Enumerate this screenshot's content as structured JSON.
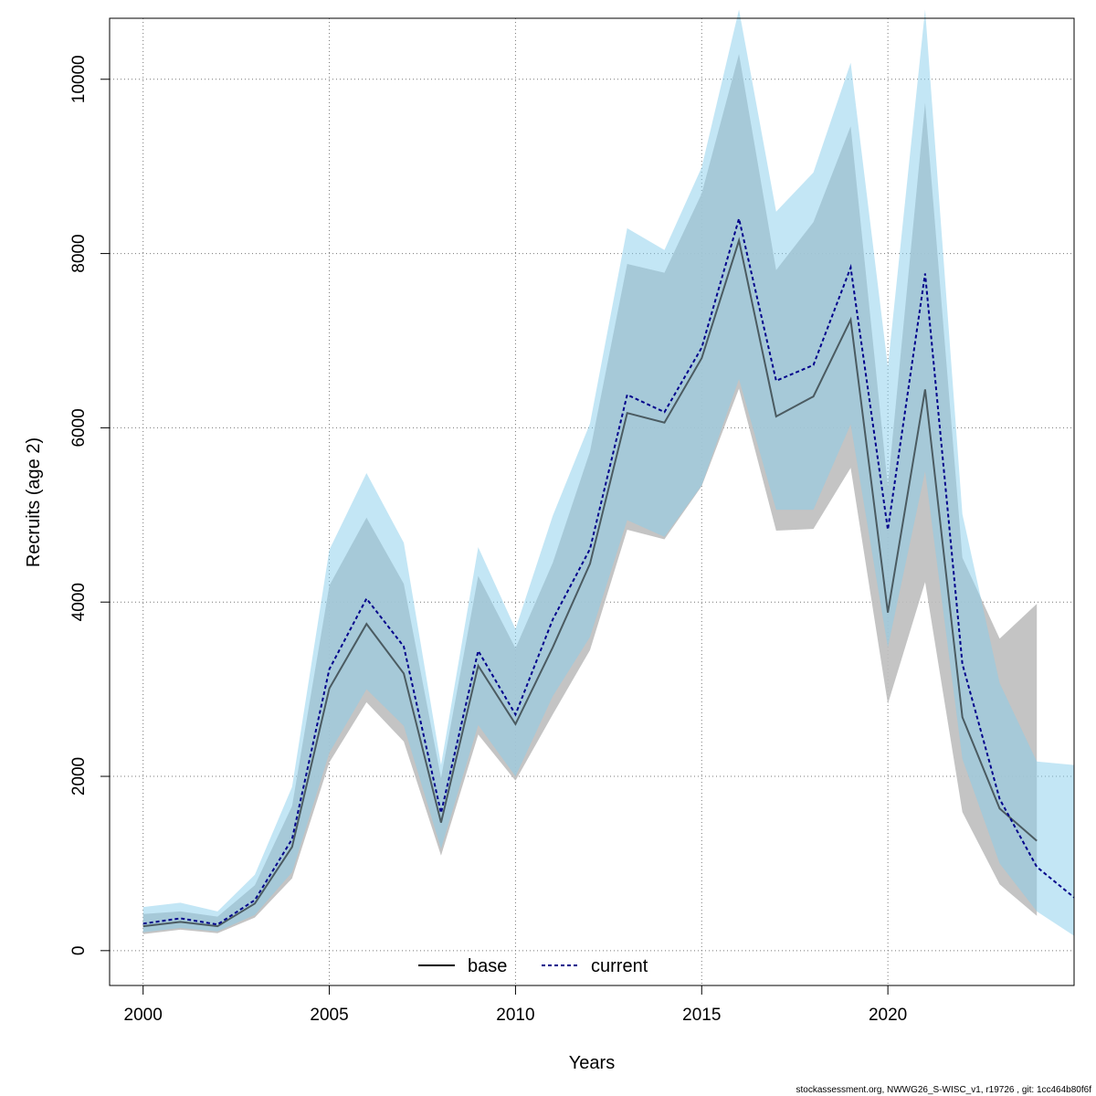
{
  "footer": "stockassessment.org, NWWG26_S-WISC_v1, r19726 , git: 1cc464b80f6f",
  "chart_data": {
    "type": "line",
    "xlabel": "Years",
    "ylabel": "Recruits (age 2)",
    "xlim": [
      1999.1,
      2025.0
    ],
    "ylim": [
      -400,
      10700
    ],
    "x_ticks": [
      2000,
      2005,
      2010,
      2015,
      2020
    ],
    "y_ticks": [
      0,
      2000,
      4000,
      6000,
      8000,
      10000
    ],
    "grid": true,
    "legend": {
      "position": "bottom",
      "entries": [
        "base",
        "current"
      ]
    },
    "colors": {
      "base_band": "#bebebe",
      "current_band": "#87ceeb",
      "base_line": "#000000",
      "current_line": "#00008b"
    },
    "series": [
      {
        "name": "base",
        "style": "solid",
        "x": [
          2000,
          2001,
          2002,
          2003,
          2004,
          2005,
          2006,
          2007,
          2008,
          2009,
          2010,
          2011,
          2012,
          2013,
          2014,
          2015,
          2016,
          2017,
          2018,
          2019,
          2020,
          2021,
          2022,
          2023,
          2024
        ],
        "y": [
          280,
          330,
          280,
          540,
          1190,
          3010,
          3750,
          3180,
          1470,
          3270,
          2600,
          3480,
          4440,
          6170,
          6060,
          6800,
          8150,
          6130,
          6360,
          7240,
          3880,
          6440,
          2680,
          1630,
          1260
        ],
        "lower": [
          190,
          240,
          200,
          380,
          830,
          2160,
          2850,
          2400,
          1090,
          2480,
          1950,
          2710,
          3450,
          4830,
          4720,
          5330,
          6450,
          4820,
          4840,
          5540,
          2830,
          4230,
          1590,
          760,
          400
        ],
        "upper": [
          420,
          450,
          390,
          750,
          1660,
          4190,
          4970,
          4210,
          1980,
          4300,
          3470,
          4450,
          5730,
          7880,
          7780,
          8690,
          10290,
          7810,
          8360,
          9460,
          5330,
          9730,
          4510,
          3580,
          3980
        ]
      },
      {
        "name": "current",
        "style": "dashed",
        "x": [
          2000,
          2001,
          2002,
          2003,
          2004,
          2005,
          2006,
          2007,
          2008,
          2009,
          2010,
          2011,
          2012,
          2013,
          2014,
          2015,
          2016,
          2017,
          2018,
          2019,
          2020,
          2021,
          2022,
          2023,
          2024,
          2025
        ],
        "y": [
          310,
          370,
          300,
          580,
          1280,
          3230,
          4040,
          3490,
          1580,
          3440,
          2710,
          3800,
          4610,
          6380,
          6180,
          6920,
          8400,
          6540,
          6720,
          7840,
          4830,
          7770,
          3290,
          1740,
          960,
          610
        ],
        "lower": [
          210,
          260,
          220,
          410,
          900,
          2270,
          3000,
          2580,
          1170,
          2590,
          2000,
          2920,
          3600,
          4940,
          4750,
          5340,
          6560,
          5060,
          5060,
          6040,
          3480,
          5500,
          2200,
          1000,
          450,
          170
        ],
        "upper": [
          500,
          550,
          450,
          870,
          1880,
          4600,
          5480,
          4680,
          2130,
          4630,
          3690,
          4990,
          6050,
          8290,
          8040,
          8990,
          10800,
          8480,
          8930,
          10190,
          6700,
          10800,
          5010,
          3070,
          2170,
          2130
        ]
      }
    ]
  }
}
